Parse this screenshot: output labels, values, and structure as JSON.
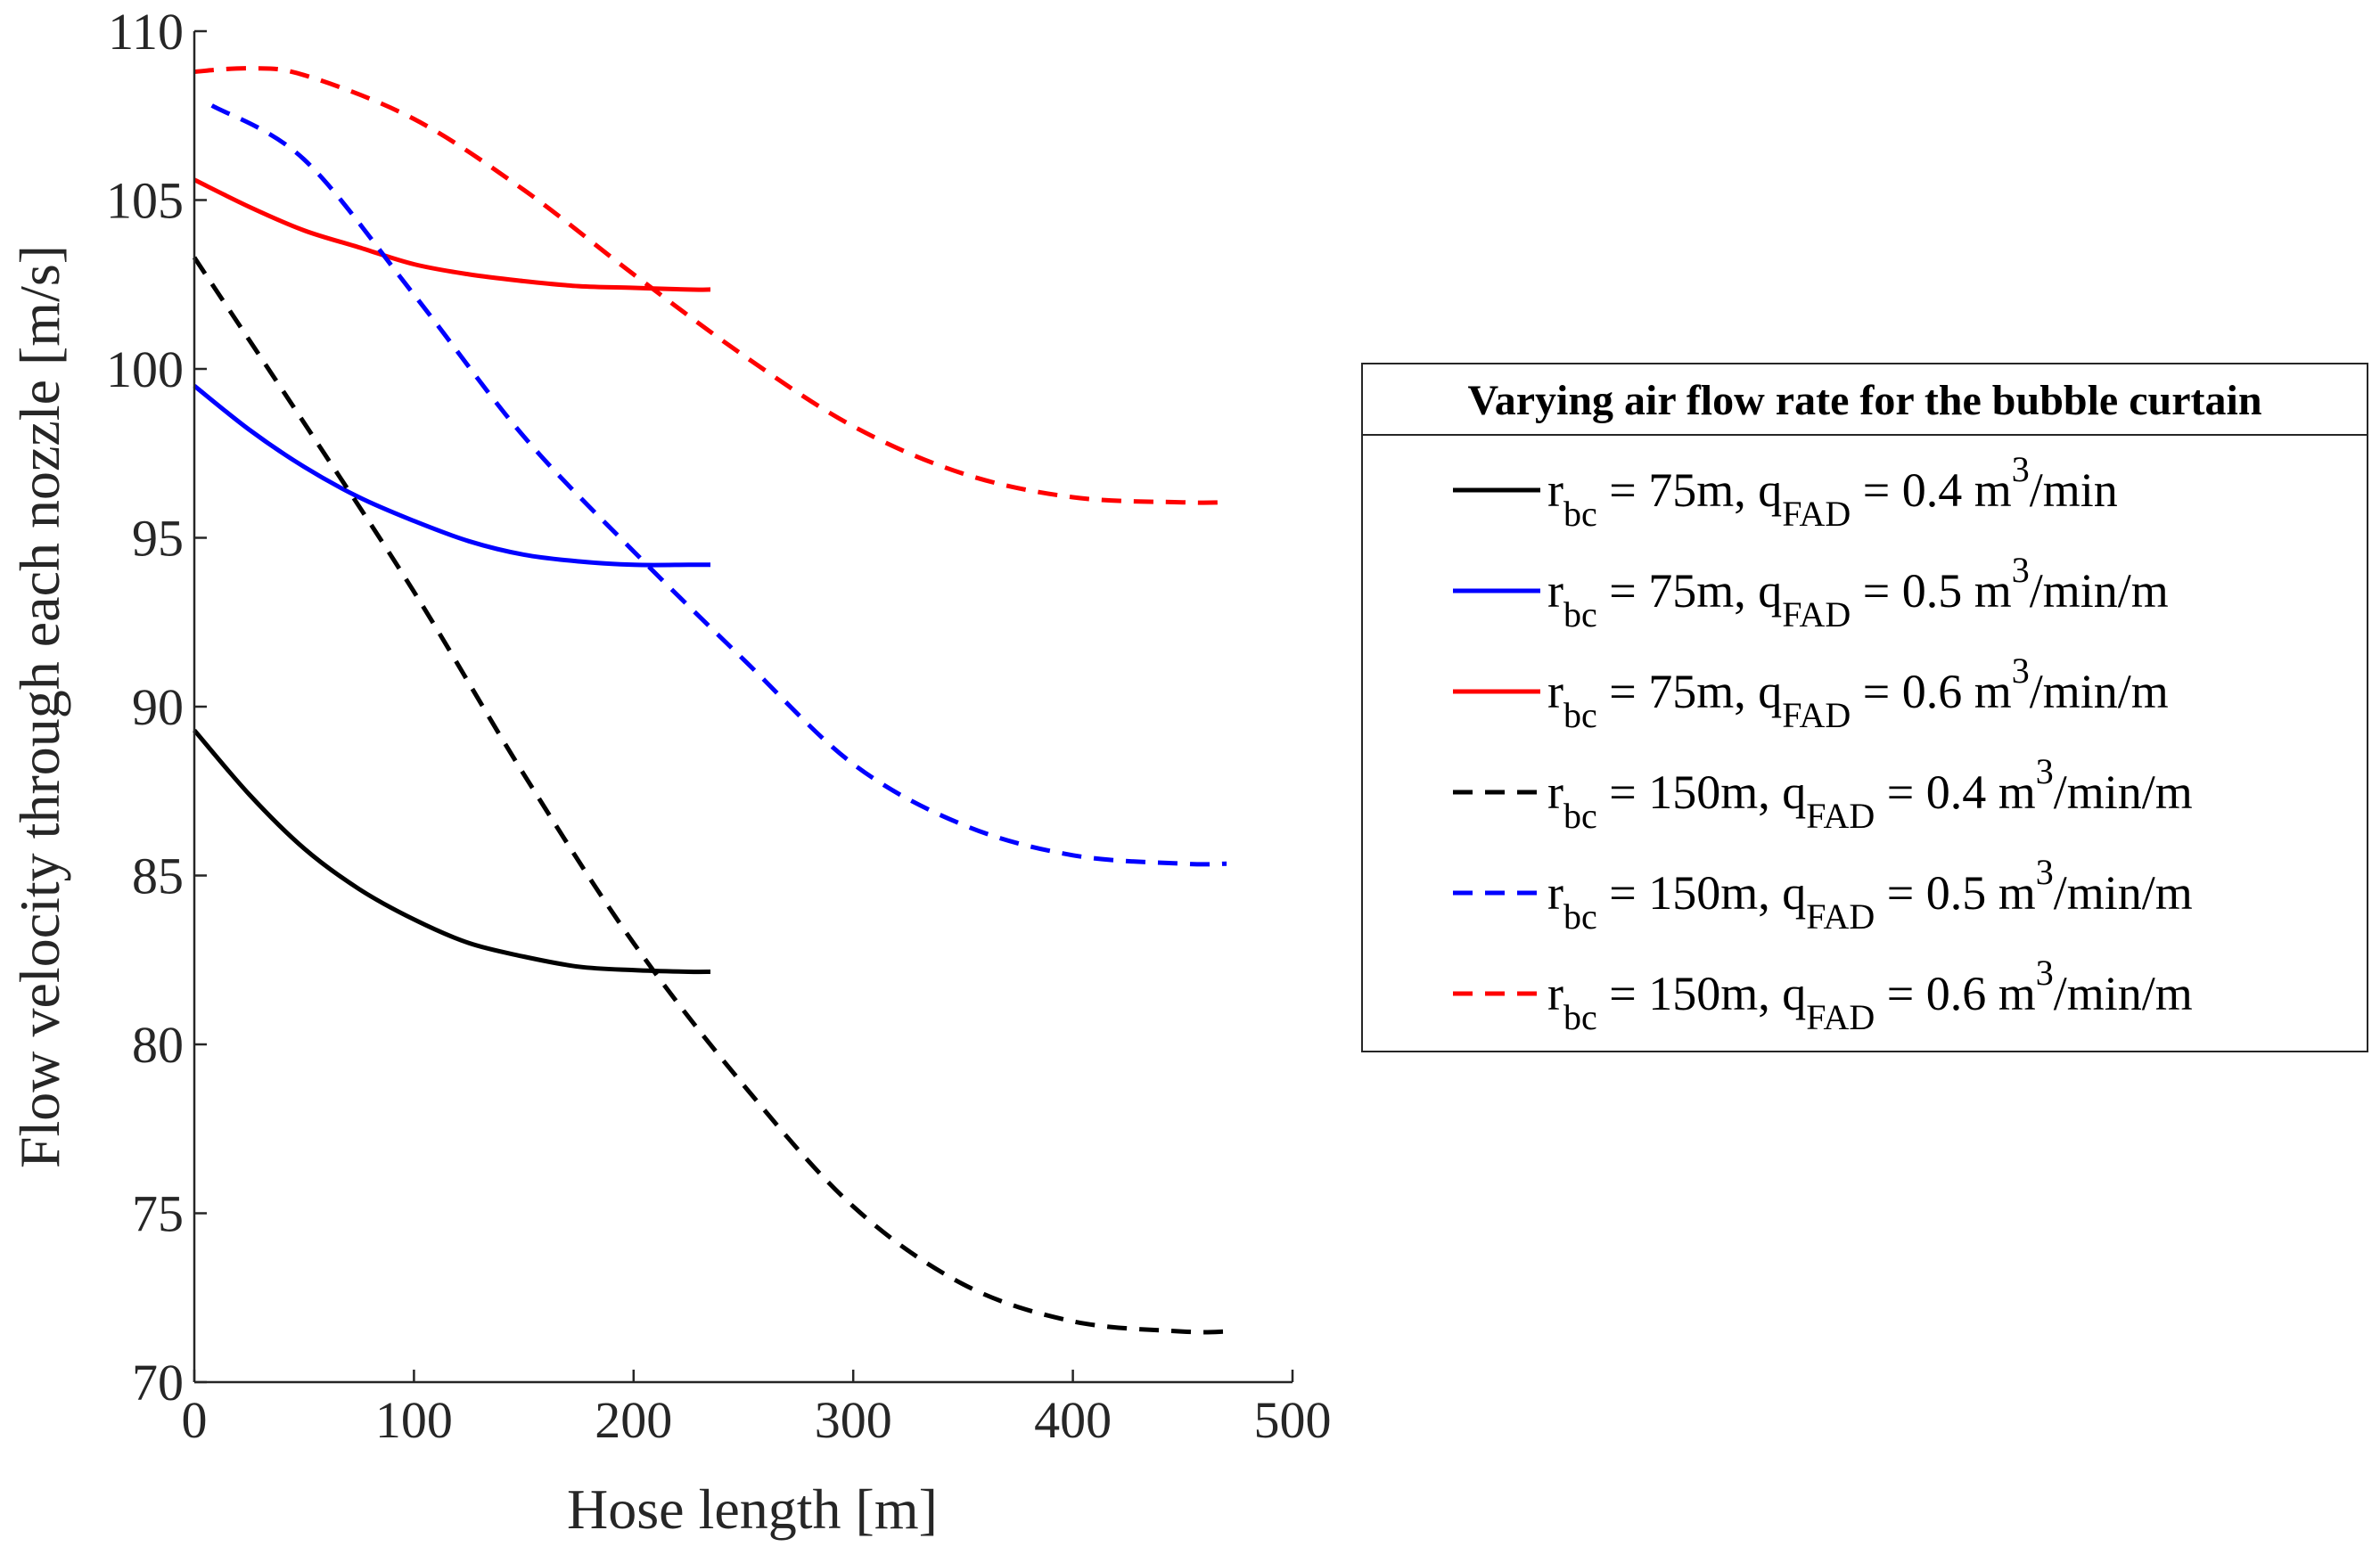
{
  "chart_data": {
    "type": "line",
    "title": "",
    "xlabel": "Hose length [m]",
    "ylabel": "Flow velocity through each nozzle [m/s]",
    "xlim": [
      0,
      500
    ],
    "ylim": [
      70,
      110
    ],
    "xticks": [
      0,
      100,
      200,
      300,
      400,
      500
    ],
    "xtick_labels": [
      "0",
      "100",
      "200",
      "300",
      "400",
      "500"
    ],
    "yticks": [
      70,
      75,
      80,
      85,
      90,
      95,
      100,
      105,
      110
    ],
    "ytick_labels": [
      "70",
      "75",
      "80",
      "85",
      "90",
      "95",
      "100",
      "105",
      "110"
    ],
    "grid": false,
    "legend_position": "right",
    "legend_title": "Varying air flow rate for the bubble curtain",
    "series": [
      {
        "name": "r_bc = 75m, q_FAD = 0.4 m^3/min",
        "label_parts": {
          "r_val": " = 75m, q",
          "q_val": " = 0.4 m",
          "unit": "/min"
        },
        "color": "#000000",
        "dash": "solid",
        "x": [
          0,
          25,
          50,
          75,
          100,
          125,
          150,
          175,
          200,
          225,
          235
        ],
        "y": [
          89.3,
          87.4,
          85.8,
          84.6,
          83.7,
          83.0,
          82.6,
          82.3,
          82.2,
          82.15,
          82.15
        ]
      },
      {
        "name": "r_bc = 75m, q_FAD = 0.5 m^3/min/m",
        "label_parts": {
          "r_val": " = 75m, q",
          "q_val": " = 0.5 m",
          "unit": "/min/m"
        },
        "color": "#0000ff",
        "dash": "solid",
        "x": [
          0,
          25,
          50,
          75,
          100,
          125,
          150,
          175,
          200,
          225,
          235
        ],
        "y": [
          99.5,
          98.2,
          97.1,
          96.2,
          95.5,
          94.9,
          94.5,
          94.3,
          94.2,
          94.2,
          94.2
        ]
      },
      {
        "name": "r_bc = 75m, q_FAD = 0.6 m^3/min/m",
        "label_parts": {
          "r_val": " = 75m, q",
          "q_val": " = 0.6 m",
          "unit": "/min/m"
        },
        "color": "#ff0000",
        "dash": "solid",
        "x": [
          0,
          25,
          50,
          75,
          100,
          125,
          150,
          175,
          200,
          225,
          235
        ],
        "y": [
          105.6,
          104.8,
          104.1,
          103.6,
          103.1,
          102.8,
          102.6,
          102.45,
          102.4,
          102.35,
          102.35
        ]
      },
      {
        "name": "r_bc = 150m, q_FAD = 0.4 m^3/min/m",
        "label_parts": {
          "r_val": " = 150m, q",
          "q_val": " = 0.4 m",
          "unit": "/min/m"
        },
        "color": "#000000",
        "dash": "dashed",
        "x": [
          0,
          50,
          100,
          150,
          200,
          250,
          300,
          350,
          400,
          450,
          470
        ],
        "y": [
          103.3,
          98.4,
          93.4,
          88.0,
          83.0,
          78.8,
          75.2,
          72.9,
          71.8,
          71.5,
          71.5
        ]
      },
      {
        "name": "r_bc = 150m, q_FAD = 0.5 m^3/min/m",
        "label_parts": {
          "r_val": " = 150m, q",
          "q_val": " = 0.5 m",
          "unit": "/min/m"
        },
        "color": "#0000ff",
        "dash": "dashed",
        "x": [
          8,
          50,
          100,
          150,
          200,
          250,
          300,
          350,
          400,
          450,
          470
        ],
        "y": [
          107.8,
          106.2,
          102.2,
          98.0,
          94.6,
          91.4,
          88.3,
          86.5,
          85.6,
          85.35,
          85.35
        ]
      },
      {
        "name": "r_bc = 150m, q_FAD = 0.6 m^3/min/m",
        "label_parts": {
          "r_val": " = 150m, q",
          "q_val": " = 0.6 m",
          "unit": "/min/m"
        },
        "color": "#ff0000",
        "dash": "dashed",
        "x": [
          0,
          25,
          50,
          100,
          150,
          200,
          250,
          300,
          350,
          400,
          450,
          470
        ],
        "y": [
          108.8,
          108.9,
          108.7,
          107.4,
          105.3,
          102.8,
          100.4,
          98.3,
          96.9,
          96.2,
          96.05,
          96.05
        ]
      }
    ]
  }
}
